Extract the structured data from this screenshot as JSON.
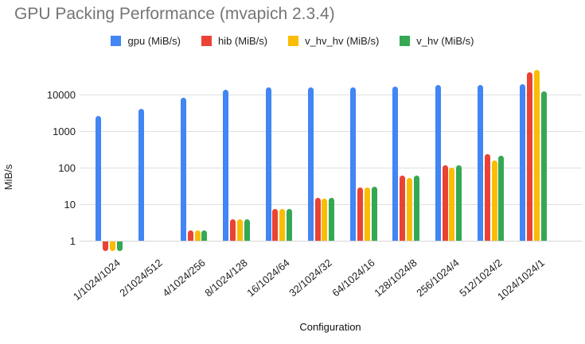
{
  "title": "GPU Packing Performance (mvapich 2.3.4)",
  "chart_data": {
    "type": "bar",
    "title": "GPU Packing Performance (mvapich 2.3.4)",
    "xlabel": "Configuration",
    "ylabel": "MiB/s",
    "y_scale": "log",
    "y_ticks": [
      1,
      10,
      100,
      1000,
      10000
    ],
    "ylim": [
      0.5,
      60000
    ],
    "grid": true,
    "legend_position": "top",
    "categories": [
      "1/1024/1024",
      "2/1024/512",
      "4/1024/256",
      "8/1024/128",
      "16/1024/64",
      "32/1024/32",
      "64/1024/16",
      "128/1024/8",
      "256/1024/4",
      "512/1024/2",
      "1024/1024/1"
    ],
    "series": [
      {
        "name": "gpu (MiB/s)",
        "color": "#4285F4",
        "values": [
          2600,
          4000,
          8000,
          13500,
          16000,
          16000,
          16000,
          16500,
          18000,
          18500,
          19000
        ]
      },
      {
        "name": "hib (MiB/s)",
        "color": "#EA4335",
        "values": [
          0.6,
          null,
          1.9,
          3.9,
          7.5,
          15,
          29,
          62,
          115,
          230,
          40000
        ]
      },
      {
        "name": "v_hv_hv (MiB/s)",
        "color": "#FBBC04",
        "values": [
          0.6,
          null,
          1.9,
          3.8,
          7.5,
          14,
          28,
          51,
          100,
          160,
          48000
        ]
      },
      {
        "name": "v_hv (MiB/s)",
        "color": "#34A853",
        "values": [
          0.6,
          null,
          1.9,
          3.9,
          7.5,
          15,
          30,
          60,
          115,
          215,
          12000
        ]
      }
    ]
  }
}
